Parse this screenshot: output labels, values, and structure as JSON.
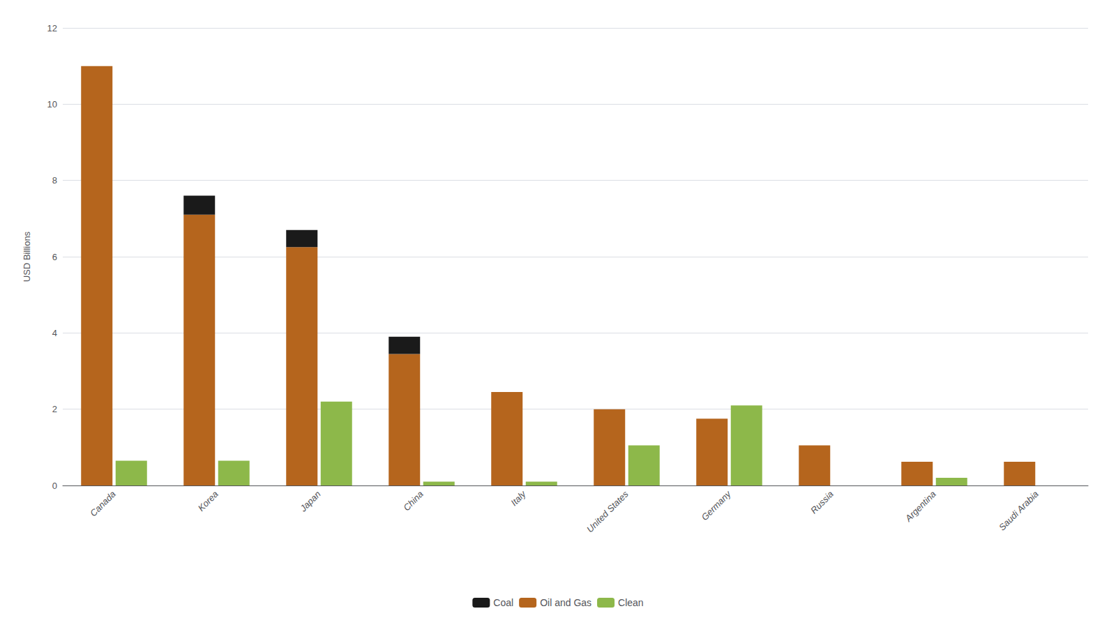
{
  "chart_data": {
    "type": "bar",
    "categories": [
      "Canada",
      "Korea",
      "Japan",
      "China",
      "Italy",
      "United States",
      "Germany",
      "Russia",
      "Argentina",
      "Saudi Arabia"
    ],
    "series": [
      {
        "name": "Coal",
        "color": "#1a1a1a",
        "values": [
          0.0,
          0.5,
          0.45,
          0.45,
          0.0,
          0.0,
          0.0,
          0.0,
          0.0,
          0.0
        ]
      },
      {
        "name": "Oil and Gas",
        "color": "#b5651d",
        "values": [
          11.0,
          7.1,
          6.25,
          3.45,
          2.45,
          2.0,
          1.75,
          1.05,
          0.62,
          0.62
        ]
      },
      {
        "name": "Clean",
        "color": "#8db84a",
        "values": [
          0.65,
          0.65,
          2.2,
          0.1,
          0.1,
          1.05,
          2.1,
          0.0,
          0.2,
          0.0
        ]
      }
    ],
    "stacked": [
      "Oil and Gas",
      "Coal"
    ],
    "ylabel": "USD Billions",
    "ylim": [
      0,
      12
    ],
    "yticks": [
      0,
      2,
      4,
      6,
      8,
      10,
      12
    ],
    "grid": true,
    "legend": "bottom"
  }
}
